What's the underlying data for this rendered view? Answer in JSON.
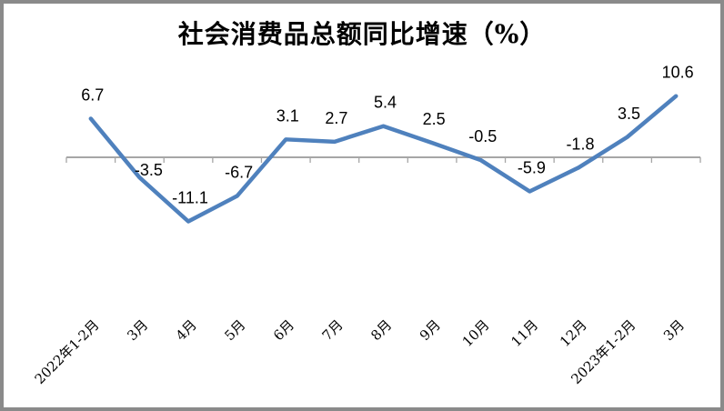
{
  "frame": {
    "background_color": "#FFFFFF",
    "border_color": "#8A8A8A"
  },
  "chart_data": {
    "type": "line",
    "title": "社会消费品总额同比增速（%）",
    "categories": [
      "2022年1-2月",
      "3月",
      "4月",
      "5月",
      "6月",
      "7月",
      "8月",
      "9月",
      "10月",
      "11月",
      "12月",
      "2023年1-2月",
      "3月"
    ],
    "values": [
      6.7,
      -3.5,
      -11.1,
      -6.7,
      3.1,
      2.7,
      5.4,
      2.5,
      -0.5,
      -5.9,
      -1.8,
      3.5,
      10.6
    ],
    "data_labels": [
      "6.7",
      "-3.5",
      "-11.1",
      "-6.7",
      "3.1",
      "2.7",
      "5.4",
      "2.5",
      "-0.5",
      "-5.9",
      "-1.8",
      "3.5",
      "10.6"
    ],
    "xlabel": "",
    "ylabel": "",
    "ylim": [
      -13,
      12
    ],
    "baseline_value": 0,
    "gridlines": false,
    "legend": "none",
    "x_label_rotation_deg": 45,
    "line_color": "#4F81BD",
    "axis_color": "#A6A6A6",
    "label_color": "#000000"
  }
}
